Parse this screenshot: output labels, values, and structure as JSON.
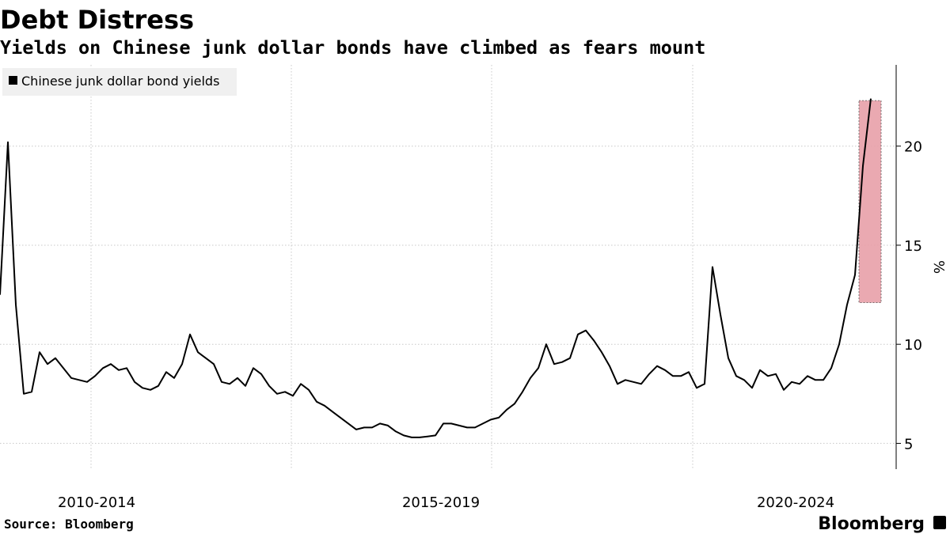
{
  "chart_data": {
    "type": "line",
    "title": "Debt Distress",
    "subtitle": "Yields on Chinese junk dollar bonds have climbed as fears mount",
    "y_axis_label": "%",
    "source": "Source: Bloomberg",
    "brand": "Bloomberg",
    "legend_position": "top-left",
    "grid": true,
    "xlim": [
      0,
      113
    ],
    "xticks": [
      {
        "value": 12.2,
        "label": "2010-2014"
      },
      {
        "value": 55.7,
        "label": "2015-2019"
      },
      {
        "value": 100.5,
        "label": "2020-2024"
      }
    ],
    "xgrid": [
      11.5,
      36.8,
      62.1,
      87.5
    ],
    "ylim": [
      3.7,
      24.1
    ],
    "yticks": [
      5,
      10,
      15,
      20
    ],
    "highlight": {
      "xlim": [
        108.5,
        111.3
      ],
      "ylim": [
        12.1,
        22.3
      ],
      "color": "#e8a0a8"
    },
    "series": [
      {
        "name": "Chinese junk dollar bond yields",
        "color": "#000000",
        "values": [
          12.5,
          20.2,
          12,
          7.5,
          7.6,
          9.6,
          9.0,
          9.3,
          8.8,
          8.3,
          8.2,
          8.1,
          8.4,
          8.8,
          9.0,
          8.7,
          8.8,
          8.1,
          7.8,
          7.7,
          7.9,
          8.6,
          8.3,
          9.0,
          10.5,
          9.6,
          9.3,
          9.0,
          8.1,
          8.0,
          8.3,
          7.9,
          8.8,
          8.5,
          7.9,
          7.5,
          7.6,
          7.4,
          8.0,
          7.7,
          7.1,
          6.9,
          6.6,
          6.3,
          6.0,
          5.7,
          5.8,
          5.8,
          6.0,
          5.9,
          5.6,
          5.4,
          5.3,
          5.3,
          5.35,
          5.4,
          6.0,
          6.0,
          5.9,
          5.8,
          5.8,
          6.0,
          6.2,
          6.3,
          6.7,
          7.0,
          7.6,
          8.3,
          8.8,
          10.0,
          9.0,
          9.1,
          9.3,
          10.5,
          10.7,
          10.2,
          9.6,
          8.9,
          8.0,
          8.2,
          8.1,
          8.0,
          8.5,
          8.9,
          8.7,
          8.4,
          8.4,
          8.6,
          7.8,
          8.0,
          13.9,
          11.5,
          9.3,
          8.4,
          8.2,
          7.8,
          8.7,
          8.4,
          8.5,
          7.7,
          8.1,
          8.0,
          8.4,
          8.2,
          8.2,
          8.8,
          10.0,
          12.0,
          13.5,
          19.0,
          22.4
        ]
      }
    ]
  }
}
